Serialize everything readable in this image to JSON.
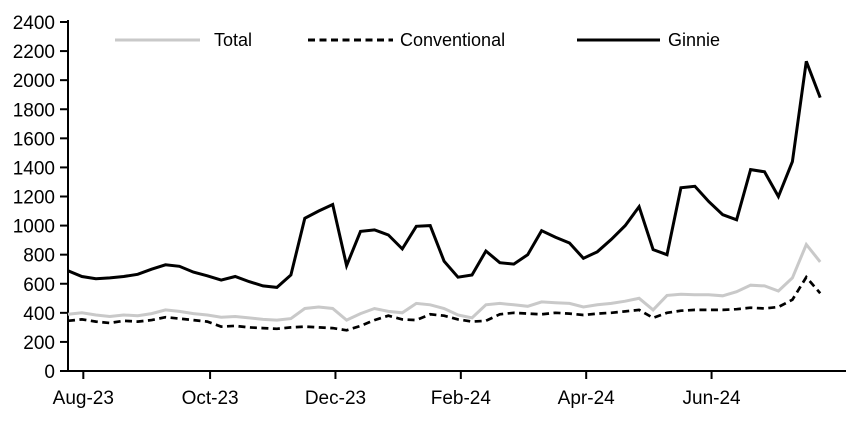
{
  "chart_data": {
    "type": "line",
    "title": "",
    "xlabel": "",
    "ylabel": "",
    "grid": false,
    "legend_position": "top-inside",
    "x_axis": {
      "tick_labels": [
        "Aug-23",
        "Oct-23",
        "Dec-23",
        "Feb-24",
        "Apr-24",
        "Jun-24"
      ],
      "tick_week_positions": [
        1.1,
        10.2,
        19.2,
        28.2,
        37.2,
        46.2
      ],
      "frequency": "weekly",
      "n_points": 55
    },
    "y_axis": {
      "min": 0,
      "max": 2400,
      "step": 200,
      "tick_labels": [
        "0",
        "200",
        "400",
        "600",
        "800",
        "1000",
        "1200",
        "1400",
        "1600",
        "1800",
        "2000",
        "2200",
        "2400"
      ]
    },
    "series": [
      {
        "name": "Total",
        "color": "#c9c9c9",
        "style": "solid",
        "values": [
          390,
          400,
          385,
          375,
          385,
          380,
          395,
          420,
          410,
          395,
          385,
          370,
          375,
          365,
          355,
          350,
          360,
          430,
          440,
          430,
          350,
          395,
          430,
          410,
          400,
          465,
          455,
          430,
          385,
          365,
          455,
          465,
          455,
          445,
          475,
          470,
          465,
          440,
          455,
          465,
          480,
          500,
          420,
          520,
          528,
          524,
          524,
          517,
          545,
          590,
          585,
          550,
          640,
          870,
          750
        ]
      },
      {
        "name": "Conventional",
        "color": "#000000",
        "style": "dashed",
        "values": [
          345,
          355,
          340,
          330,
          345,
          340,
          350,
          370,
          360,
          350,
          340,
          305,
          310,
          300,
          295,
          290,
          300,
          305,
          300,
          295,
          280,
          310,
          350,
          380,
          355,
          350,
          390,
          380,
          355,
          340,
          345,
          390,
          400,
          395,
          390,
          400,
          395,
          385,
          395,
          400,
          410,
          420,
          365,
          400,
          415,
          420,
          420,
          420,
          425,
          435,
          430,
          440,
          490,
          645,
          535
        ]
      },
      {
        "name": "Ginnie",
        "color": "#000000",
        "style": "solid",
        "values": [
          690,
          650,
          635,
          640,
          650,
          665,
          700,
          730,
          720,
          680,
          655,
          625,
          650,
          615,
          585,
          575,
          660,
          1050,
          1100,
          1145,
          725,
          960,
          970,
          935,
          840,
          995,
          1000,
          755,
          645,
          660,
          825,
          745,
          735,
          800,
          965,
          920,
          880,
          775,
          820,
          905,
          1000,
          1130,
          835,
          800,
          1260,
          1270,
          1165,
          1075,
          1040,
          1385,
          1370,
          1200,
          1440,
          2130,
          1880
        ]
      }
    ]
  }
}
